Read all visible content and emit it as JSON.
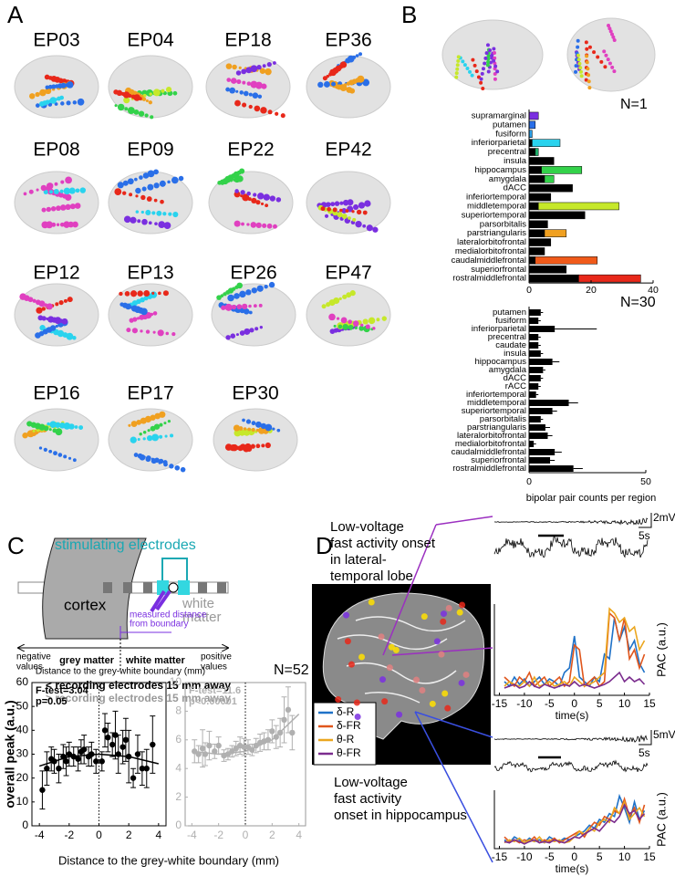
{
  "panels": {
    "a": "A",
    "b": "B",
    "c": "C",
    "d": "D"
  },
  "subjects": [
    "EP03",
    "EP04",
    "EP18",
    "EP36",
    "EP08",
    "EP09",
    "EP22",
    "EP42",
    "EP12",
    "EP13",
    "EP26",
    "EP47",
    "EP16",
    "EP17",
    "EP30"
  ],
  "schematic": {
    "stimulating": "stimulating electrodes",
    "cortex": "cortex",
    "white_matter_region": [
      "white",
      "matter"
    ],
    "measured": [
      "measured distance",
      "from boundary"
    ],
    "negative": [
      "negative",
      "values"
    ],
    "positive": [
      "positive",
      "values"
    ],
    "grey_matter": "grey matter",
    "white_matter": "white matter",
    "axis": "Distance to the grey-white boundary (mm)",
    "near": "< recording electrodes 15 mm away",
    "far": "> recording electrodes 15 mm away"
  },
  "panel_d": {
    "top_text": [
      "Low-voltage",
      "fast activity onset",
      "in lateral-",
      "temporal lobe"
    ],
    "bottom_text": [
      "Low-voltage",
      "fast activity",
      "onset in hippocampus"
    ],
    "top_scale": [
      "2mV",
      "5s"
    ],
    "bottom_scale": [
      "5mV",
      "5s"
    ]
  },
  "chart_data": [
    {
      "type": "bar",
      "orientation": "horizontal",
      "stacked": true,
      "title": "N=1",
      "categories": [
        "supramarginal",
        "putamen",
        "fusiform",
        "inferiorparietal",
        "precentral",
        "insula",
        "hippocampus",
        "amygdala",
        "dACC",
        "inferiortemporal",
        "middletemporal",
        "superiortemporal",
        "parsorbitalis",
        "parstriangularis",
        "lateralorbitofrontal",
        "medialorbitofrontal",
        "caudalmiddlefrontal",
        "superiorfrontal",
        "rostralmiddlefrontal"
      ],
      "series": [
        {
          "color": "#000000",
          "values": [
            0,
            0,
            0,
            1,
            2,
            8,
            4,
            5,
            14,
            7,
            3,
            18,
            6,
            5,
            7,
            5,
            2,
            12,
            16
          ]
        },
        {
          "colors": [
            "#7a2fe0",
            "#2a6fe8",
            "#2a9fe8",
            "#29d3ee",
            "#1fae6a",
            "#000000",
            "#33d24a",
            "#33d24a",
            "#000000",
            "#000000",
            "#c6e82a",
            "#000000",
            "#000000",
            "#f0a020",
            "#000000",
            "#000000",
            "#f05a1a",
            "#000000",
            "#e8281a"
          ],
          "values": [
            3,
            2,
            1,
            9,
            1,
            0,
            13,
            3,
            0,
            0,
            26,
            0,
            0,
            7,
            0,
            0,
            20,
            0,
            20
          ]
        }
      ],
      "xlim": [
        0,
        40
      ],
      "xticks": [
        0,
        20,
        40
      ]
    },
    {
      "type": "bar",
      "orientation": "horizontal",
      "title": "N=30",
      "xlabel": "bipolar pair counts per region",
      "categories": [
        "putamen",
        "fusiform",
        "inferiorparietal",
        "precentral",
        "caudate",
        "insula",
        "hippocampus",
        "amygdala",
        "dACC",
        "rACC",
        "inferiortemporal",
        "middletemporal",
        "superiortemporal",
        "parsorbitalis",
        "parstriangularis",
        "lateralorbitofrontal",
        "medialorbitofrontal",
        "caudalmiddlefrontal",
        "superiorfrontal",
        "rostralmiddlefrontal"
      ],
      "values": [
        5,
        4,
        11,
        4,
        4,
        5,
        10,
        6,
        5,
        4,
        3,
        17,
        10,
        5,
        7,
        8,
        2,
        11,
        9,
        19
      ],
      "errors": [
        1,
        1,
        18,
        1,
        1,
        1,
        3,
        1,
        1,
        1,
        1,
        4,
        2,
        1,
        2,
        2,
        1,
        3,
        2,
        4
      ],
      "color": "#000000",
      "xlim": [
        0,
        50
      ],
      "xticks": [
        0,
        50
      ]
    },
    {
      "type": "scatter",
      "ylabel": "overall peak (a.u.)",
      "xlabel": "Distance to the grey-white boundary (mm)",
      "annotation": [
        "F-test=3.04",
        "p=0.05"
      ],
      "color": "#000000",
      "vline": 0,
      "x": [
        -3.8,
        -3.5,
        -3.2,
        -3.0,
        -2.7,
        -2.4,
        -2.2,
        -2.0,
        -1.7,
        -1.4,
        -1.2,
        -1.0,
        -0.7,
        -0.5,
        -0.2,
        0.2,
        0.4,
        0.6,
        0.9,
        1.1,
        1.3,
        1.6,
        1.8,
        2.0,
        2.3,
        2.6,
        2.9,
        3.2,
        3.6
      ],
      "values": [
        15,
        24,
        28,
        27,
        24,
        29,
        27,
        30,
        29,
        28,
        31,
        32,
        29,
        30,
        27,
        27,
        40,
        37,
        34,
        38,
        30,
        33,
        36,
        29,
        20,
        30,
        24,
        24,
        34
      ],
      "errors": [
        8,
        7,
        5,
        5,
        6,
        5,
        6,
        5,
        4,
        5,
        5,
        6,
        4,
        5,
        5,
        4,
        7,
        6,
        5,
        10,
        8,
        7,
        9,
        11,
        4,
        8,
        7,
        8,
        12
      ],
      "fit": {
        "x": [
          -4,
          -2,
          0,
          2,
          4
        ],
        "values": [
          25,
          29,
          30,
          29,
          26
        ]
      },
      "xlim": [
        -4.5,
        4.5
      ],
      "xticks": [
        -4,
        -2,
        0,
        2,
        4
      ],
      "ylim": [
        0,
        60
      ],
      "yticks": [
        0,
        10,
        20,
        30,
        40,
        50,
        60
      ]
    },
    {
      "type": "scatter",
      "title": "N=52",
      "annotation": [
        "F-test=11.6",
        "p<0.00001"
      ],
      "color": "#b0b0b0",
      "vline": 0,
      "x": [
        -3.8,
        -3.5,
        -3.2,
        -3.0,
        -2.7,
        -2.3,
        -2.0,
        -1.6,
        -1.3,
        -1.0,
        -0.7,
        -0.4,
        -0.1,
        0.2,
        0.5,
        0.8,
        1.1,
        1.4,
        1.7,
        2.0,
        2.3,
        2.6,
        2.9,
        3.2,
        3.5
      ],
      "values": [
        5.2,
        5.0,
        5.4,
        5.0,
        5.6,
        5.2,
        5.6,
        4.9,
        5.0,
        5.2,
        5.4,
        5.6,
        5.5,
        5.5,
        5.3,
        5.6,
        5.8,
        5.9,
        6.0,
        6.6,
        6.2,
        6.5,
        7.4,
        8.1,
        6.5
      ],
      "errors": [
        0.8,
        0.6,
        1.3,
        0.8,
        1.0,
        0.5,
        0.6,
        0.4,
        0.4,
        0.4,
        0.5,
        0.6,
        0.6,
        0.5,
        0.4,
        0.5,
        0.6,
        0.6,
        0.7,
        0.8,
        0.8,
        1.0,
        1.6,
        1.6,
        1.2
      ],
      "fit": {
        "x": [
          -4,
          -2,
          0,
          2,
          4
        ],
        "values": [
          5.2,
          5.0,
          5.2,
          6.0,
          7.8
        ]
      },
      "xlim": [
        -4.5,
        4.5
      ],
      "xticks": [
        -4,
        -2,
        0,
        2,
        4
      ],
      "ylim": [
        0,
        10
      ],
      "yticks": [
        0,
        2,
        4,
        6,
        8,
        10
      ]
    },
    {
      "type": "line",
      "ylabel": "PAC (a.u.)",
      "xlabel": "time(s)",
      "x": [
        -14,
        -13,
        -12,
        -11,
        -10,
        -9,
        -8,
        -7,
        -6,
        -5,
        -4,
        -3,
        -2,
        -1,
        0,
        1,
        2,
        3,
        4,
        5,
        6,
        7,
        8,
        9,
        10,
        11,
        12,
        13,
        14
      ],
      "series": [
        {
          "name": "δ-R",
          "color": "#1f72c8",
          "values": [
            0.15,
            0.1,
            0.2,
            0.12,
            0.18,
            0.1,
            0.15,
            0.2,
            0.12,
            0.18,
            0.15,
            0.1,
            0.25,
            0.3,
            0.65,
            0.2,
            0.15,
            0.1,
            0.2,
            0.15,
            0.45,
            0.4,
            0.85,
            0.6,
            0.75,
            0.5,
            0.6,
            0.35,
            0.25
          ]
        },
        {
          "name": "δ-FR",
          "color": "#e0561c",
          "values": [
            0.2,
            0.15,
            0.1,
            0.2,
            0.15,
            0.25,
            0.1,
            0.15,
            0.2,
            0.1,
            0.15,
            0.2,
            0.1,
            0.15,
            0.55,
            0.5,
            0.1,
            0.15,
            0.2,
            0.1,
            0.15,
            0.9,
            0.85,
            0.6,
            0.85,
            0.4,
            0.5,
            0.3,
            0.45
          ]
        },
        {
          "name": "θ-R",
          "color": "#eba61f",
          "values": [
            0.1,
            0.15,
            0.12,
            0.1,
            0.15,
            0.1,
            0.2,
            0.1,
            0.12,
            0.15,
            0.1,
            0.12,
            0.15,
            0.1,
            0.2,
            0.15,
            0.1,
            0.12,
            0.15,
            0.2,
            0.25,
            0.95,
            0.9,
            0.8,
            0.85,
            0.7,
            0.75,
            0.5,
            0.6
          ]
        },
        {
          "name": "θ-FR",
          "color": "#7b2d8e",
          "values": [
            0.08,
            0.1,
            0.12,
            0.08,
            0.1,
            0.15,
            0.1,
            0.08,
            0.12,
            0.1,
            0.08,
            0.1,
            0.12,
            0.1,
            0.15,
            0.1,
            0.12,
            0.1,
            0.08,
            0.1,
            0.12,
            0.15,
            0.2,
            0.25,
            0.15,
            0.2,
            0.15,
            0.18,
            0.12
          ]
        }
      ],
      "xlim": [
        -16,
        15
      ],
      "xticks": [
        -15,
        -10,
        -5,
        0,
        5,
        10,
        15
      ],
      "ylim": [
        0,
        1
      ]
    },
    {
      "type": "line",
      "ylabel": "PAC (a.u.)",
      "xlabel": "time(s)",
      "x": [
        -14,
        -13,
        -12,
        -11,
        -10,
        -9,
        -8,
        -7,
        -6,
        -5,
        -4,
        -3,
        -2,
        -1,
        0,
        1,
        2,
        3,
        4,
        5,
        6,
        7,
        8,
        9,
        10,
        11,
        12,
        13,
        14
      ],
      "series": [
        {
          "color": "#1f72c8",
          "values": [
            0.15,
            0.1,
            0.2,
            0.15,
            0.1,
            0.18,
            0.12,
            0.15,
            0.1,
            0.2,
            0.15,
            0.12,
            0.18,
            0.15,
            0.2,
            0.25,
            0.3,
            0.4,
            0.35,
            0.5,
            0.45,
            0.6,
            0.55,
            0.9,
            0.7,
            0.45,
            0.8,
            0.5,
            0.65
          ]
        },
        {
          "color": "#e0561c",
          "values": [
            0.2,
            0.12,
            0.15,
            0.1,
            0.15,
            0.12,
            0.2,
            0.1,
            0.15,
            0.12,
            0.18,
            0.1,
            0.15,
            0.2,
            0.25,
            0.3,
            0.2,
            0.35,
            0.45,
            0.4,
            0.55,
            0.5,
            0.65,
            0.6,
            0.85,
            0.55,
            0.7,
            0.45,
            0.75
          ]
        },
        {
          "color": "#eba61f",
          "values": [
            0.1,
            0.15,
            0.12,
            0.18,
            0.1,
            0.15,
            0.12,
            0.2,
            0.1,
            0.15,
            0.12,
            0.15,
            0.1,
            0.12,
            0.2,
            0.3,
            0.25,
            0.35,
            0.3,
            0.45,
            0.5,
            0.45,
            0.7,
            0.6,
            0.8,
            0.5,
            0.6,
            0.7,
            0.55
          ]
        },
        {
          "color": "#7b2d8e",
          "values": [
            0.12,
            0.1,
            0.15,
            0.12,
            0.08,
            0.12,
            0.15,
            0.1,
            0.12,
            0.1,
            0.15,
            0.12,
            0.1,
            0.15,
            0.2,
            0.18,
            0.25,
            0.3,
            0.35,
            0.3,
            0.4,
            0.5,
            0.45,
            0.55,
            0.75,
            0.6,
            0.65,
            0.5,
            0.6
          ]
        }
      ],
      "xlim": [
        -16,
        15
      ],
      "xticks": [
        -15,
        -10,
        -5,
        0,
        5,
        10,
        15
      ],
      "ylim": [
        0,
        1
      ]
    }
  ]
}
